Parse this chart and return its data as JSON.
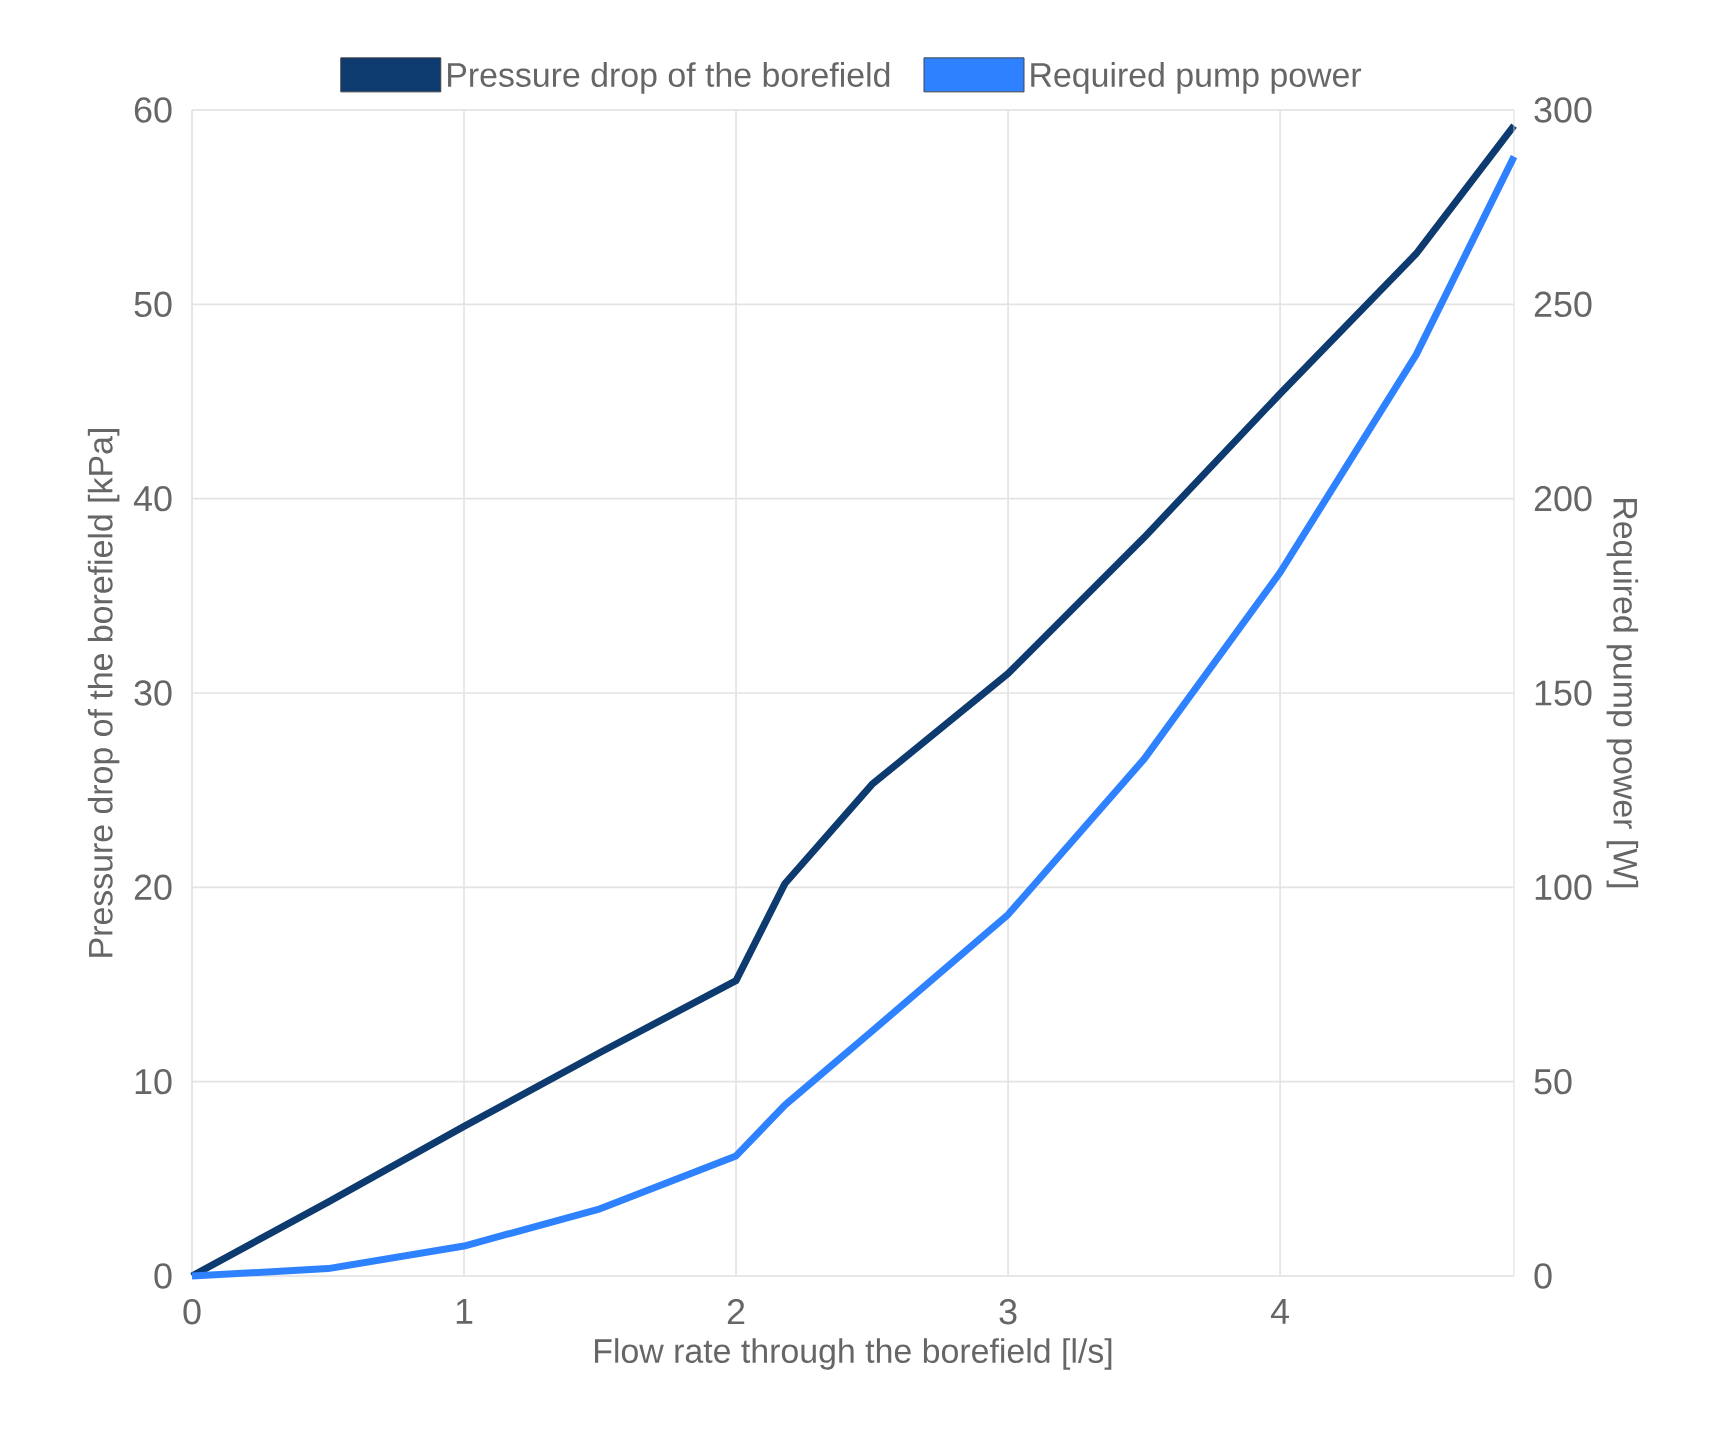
{
  "chart_data": {
    "type": "line",
    "xlabel": "Flow rate through the borefield [l/s]",
    "ylabel": "Pressure drop of the borefield [kPa]",
    "y2label": "Required pump power [W]",
    "xlim": [
      0,
      4.86
    ],
    "xticks": [
      0,
      1,
      2,
      3,
      4
    ],
    "ylim": [
      0,
      60
    ],
    "yticks": [
      0,
      10,
      20,
      30,
      40,
      50,
      60
    ],
    "y2lim": [
      0,
      300
    ],
    "y2ticks": [
      0,
      50,
      100,
      150,
      200,
      250,
      300
    ],
    "grid": true,
    "legend": "top",
    "marker": "none",
    "line_style": "solid",
    "series": [
      {
        "name": "Pressure drop of the borefield",
        "color": "#0d3b70",
        "x": [
          0,
          0.5,
          1,
          1.5,
          2,
          2.18,
          2.5,
          3,
          3.5,
          4,
          4.5,
          4.86
        ],
        "values": [
          0,
          3.8,
          7.7,
          11.5,
          15.2,
          20.2,
          25.3,
          31.0,
          38.0,
          45.4,
          52.6,
          59.2
        ]
      },
      {
        "name": "Required pump power",
        "color": "#2e82ff",
        "axis": "y2",
        "x": [
          0,
          0.5,
          1,
          1.5,
          2,
          2.18,
          2.5,
          3,
          3.5,
          4,
          4.5,
          4.86
        ],
        "values": [
          0,
          1.9,
          7.7,
          17.3,
          30.9,
          44,
          63,
          93,
          133,
          181,
          237,
          288
        ]
      }
    ]
  }
}
